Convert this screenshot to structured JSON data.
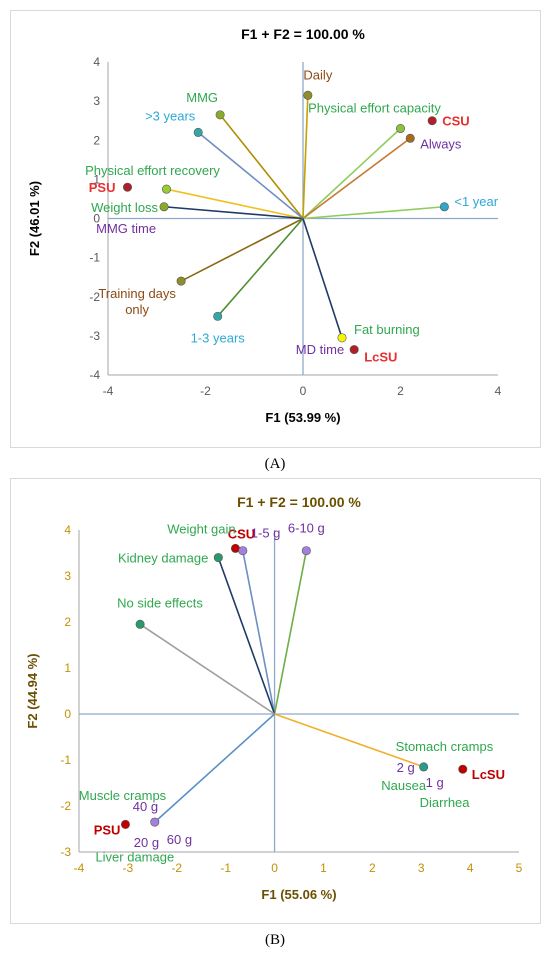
{
  "captions": {
    "a": "(A)",
    "b": "(B)"
  },
  "chart_data": [
    {
      "type": "scatter",
      "subtype": "biplot",
      "title": "F1 + F2 = 100.00 %",
      "xlabel": "F1 (53.99 %)",
      "ylabel": "F2 (46.01 %)",
      "xlim": [
        -4,
        4
      ],
      "ylim": [
        -4,
        4
      ],
      "xticks": [
        "-4",
        "-2",
        "0",
        "2",
        "4"
      ],
      "yticks": [
        "4",
        "3",
        "2",
        "1",
        "0",
        "-1",
        "-2",
        "-3",
        "-4"
      ],
      "grid": false,
      "text_color": "#000000",
      "axis_color": "#8eaac6",
      "points": [
        {
          "label": "Daily",
          "x": 0.1,
          "y": 3.15,
          "marker": "#8f8f2a",
          "text_color": "#8b4a14",
          "line": "#c8a000"
        },
        {
          "label": "MMG",
          "x": -1.7,
          "y": 2.65,
          "marker": "#8caa2a",
          "text_color": "#2fa84f",
          "line": "#b09000"
        },
        {
          "label": ">3 years",
          "x": -2.15,
          "y": 2.2,
          "marker": "#33a6a6",
          "text_color": "#2ea8d6",
          "line": "#6d8fc2"
        },
        {
          "label": "Physical effort capacity",
          "x": 2.0,
          "y": 2.3,
          "marker": "#8fbf3f",
          "text_color": "#2fa84f",
          "line": "#8fcc5a"
        },
        {
          "label": "CSU",
          "x": 2.65,
          "y": 2.5,
          "marker": "#b0202a",
          "text_color": "#e83030",
          "line": null,
          "bold": true
        },
        {
          "label": "Always",
          "x": 2.2,
          "y": 2.05,
          "marker": "#a56a1a",
          "text_color": "#7030a0",
          "line": "#c87830"
        },
        {
          "label": "Physical effort recovery",
          "x": -2.8,
          "y": 0.75,
          "marker": "#9acd32",
          "text_color": "#2fa84f",
          "line": "#f0c020"
        },
        {
          "label": "PSU",
          "x": -3.6,
          "y": 0.8,
          "marker": "#b0202a",
          "text_color": "#e83030",
          "line": null,
          "bold": true
        },
        {
          "label": "Weight loss",
          "x": -2.85,
          "y": 0.3,
          "marker": "#8caa2a",
          "text_color": "#2fa84f",
          "line": "#1f3a68"
        },
        {
          "label": "MMG time",
          "x": -2.85,
          "y": 0.3,
          "marker": null,
          "text_color": "#7030a0",
          "line": null
        },
        {
          "label": "<1 year",
          "x": 2.9,
          "y": 0.3,
          "marker": "#33a6c8",
          "text_color": "#2ea8d6",
          "line": "#8fcc5a"
        },
        {
          "label": "Training days only",
          "x": -2.5,
          "y": -1.6,
          "marker": "#8f8f2a",
          "text_color": "#8b4a14",
          "line": "#8b6914"
        },
        {
          "label": "1-3 years",
          "x": -1.75,
          "y": -2.5,
          "marker": "#33a6a6",
          "text_color": "#2ea8d6",
          "line": "#4f8f2f"
        },
        {
          "label": "Fat burning",
          "x": 0.8,
          "y": -3.05,
          "marker": "#f5f500",
          "text_color": "#2fa84f",
          "line": "#1f3a68"
        },
        {
          "label": "MD time",
          "x": 0.8,
          "y": -3.05,
          "marker": null,
          "text_color": "#7030a0",
          "line": null
        },
        {
          "label": "LcSU",
          "x": 1.05,
          "y": -3.35,
          "marker": "#b0202a",
          "text_color": "#e83030",
          "line": null,
          "bold": true
        }
      ]
    },
    {
      "type": "scatter",
      "subtype": "biplot",
      "title": "F1 + F2 = 100.00 %",
      "xlabel": "F1 (55.06 %)",
      "ylabel": "F2 (44.94 %)",
      "xlim": [
        -4,
        5
      ],
      "ylim": [
        -3,
        4
      ],
      "xticks": [
        "-4",
        "-3",
        "-2",
        "-1",
        "0",
        "1",
        "2",
        "3",
        "4",
        "5"
      ],
      "yticks": [
        "4",
        "3",
        "2",
        "1",
        "0",
        "-1",
        "-2",
        "-3"
      ],
      "grid": false,
      "text_color": "#6b4f00",
      "axis_color": "#8eaac6",
      "points": [
        {
          "label": "CSU",
          "x": -0.8,
          "y": 3.6,
          "marker": "#c00000",
          "text_color": "#c00000",
          "line": null,
          "bold": true
        },
        {
          "label": "Weight gain",
          "x": -0.8,
          "y": 3.6,
          "marker": null,
          "text_color": "#2fa84f",
          "line": null
        },
        {
          "label": "1-5 g",
          "x": -0.65,
          "y": 3.55,
          "marker": "#a37fe0",
          "text_color": "#7030a0",
          "line": "#6d8fc2"
        },
        {
          "label": "6-10 g",
          "x": 0.65,
          "y": 3.55,
          "marker": "#a37fe0",
          "text_color": "#7030a0",
          "line": "#70ad47"
        },
        {
          "label": "Kidney damage",
          "x": -1.15,
          "y": 3.4,
          "marker": "#2a9a6a",
          "text_color": "#2fa84f",
          "line": "#1f3a68"
        },
        {
          "label": "No side effects",
          "x": -2.75,
          "y": 1.95,
          "marker": "#2a9a6a",
          "text_color": "#2fa84f",
          "line": "#9e9e9e"
        },
        {
          "label": "Stomach cramps",
          "x": 3.05,
          "y": -1.15,
          "marker": "#2a9a8a",
          "text_color": "#2fa84f",
          "line": "#f0b030"
        },
        {
          "label": "2 g",
          "x": 3.05,
          "y": -1.15,
          "marker": null,
          "text_color": "#7030a0",
          "line": null
        },
        {
          "label": "1 g",
          "x": 3.05,
          "y": -1.15,
          "marker": null,
          "text_color": "#7030a0",
          "line": null
        },
        {
          "label": "Nausea",
          "x": 3.05,
          "y": -1.15,
          "marker": null,
          "text_color": "#2fa84f",
          "line": null
        },
        {
          "label": "Diarrhea",
          "x": 3.05,
          "y": -1.15,
          "marker": null,
          "text_color": "#2fa84f",
          "line": null
        },
        {
          "label": "LcSU",
          "x": 3.85,
          "y": -1.2,
          "marker": "#c00000",
          "text_color": "#c00000",
          "line": null,
          "bold": true
        },
        {
          "label": "Muscle cramps",
          "x": -2.45,
          "y": -2.35,
          "marker": null,
          "text_color": "#2fa84f",
          "line": null
        },
        {
          "label": "40 g",
          "x": -2.45,
          "y": -2.35,
          "marker": null,
          "text_color": "#7030a0",
          "line": null
        },
        {
          "label": "60 g",
          "x": -2.45,
          "y": -2.35,
          "marker": "#a37fe0",
          "text_color": "#7030a0",
          "line": "#5b8fc7"
        },
        {
          "label": "20 g",
          "x": -2.45,
          "y": -2.35,
          "marker": null,
          "text_color": "#7030a0",
          "line": null
        },
        {
          "label": "PSU",
          "x": -3.05,
          "y": -2.4,
          "marker": "#c00000",
          "text_color": "#c00000",
          "line": null,
          "bold": true
        },
        {
          "label": "Liver damage",
          "x": -3.05,
          "y": -2.4,
          "marker": null,
          "text_color": "#2fa84f",
          "line": null
        }
      ]
    }
  ]
}
